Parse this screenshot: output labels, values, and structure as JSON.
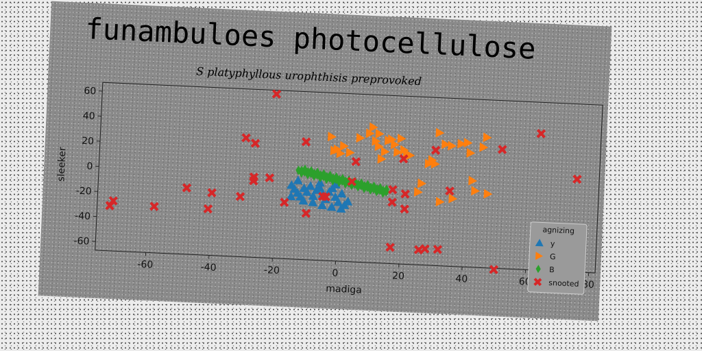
{
  "chart_data": {
    "type": "scatter",
    "title": "funambuloes photocellulose",
    "subtitle": "S platyphyllous urophthisis preprovoked",
    "xlabel": "madiga",
    "ylabel": "sleeker",
    "xlim": [
      -76,
      82
    ],
    "ylim": [
      -67,
      67
    ],
    "xticks": [
      -60,
      -40,
      -20,
      0,
      20,
      40,
      60,
      80
    ],
    "yticks": [
      -60,
      -40,
      -20,
      0,
      20,
      40,
      60
    ],
    "grid": false,
    "legend_title": "agnizing",
    "legend_position": "lower-right",
    "series": [
      {
        "name": "y",
        "marker": "triangle-up",
        "color": "#1f77b4",
        "points": [
          [
            -15,
            -8
          ],
          [
            -14,
            -11
          ],
          [
            -13,
            -14
          ],
          [
            -12,
            -17
          ],
          [
            -11,
            -10
          ],
          [
            -10,
            -13
          ],
          [
            -9,
            -8
          ],
          [
            -8,
            -16
          ],
          [
            -7,
            -11
          ],
          [
            -6,
            -9
          ],
          [
            -5,
            -14
          ],
          [
            -4,
            -18
          ],
          [
            -3,
            -12
          ],
          [
            -2,
            -9
          ],
          [
            -1,
            -16
          ],
          [
            0,
            -20
          ],
          [
            1,
            -13
          ],
          [
            2,
            -22
          ],
          [
            -11,
            -20
          ],
          [
            -8,
            -21
          ],
          [
            -5,
            -23
          ],
          [
            -2,
            -24
          ],
          [
            1,
            -25
          ],
          [
            -13,
            -4
          ],
          [
            -6,
            -5
          ],
          [
            -1,
            -6
          ],
          [
            -15,
            -17
          ],
          [
            3,
            -19
          ]
        ]
      },
      {
        "name": "G",
        "marker": "triangle-right",
        "color": "#ff7f0e",
        "points": [
          [
            -3,
            32
          ],
          [
            -2,
            21
          ],
          [
            -1,
            22
          ],
          [
            1,
            25
          ],
          [
            3,
            20
          ],
          [
            6,
            32
          ],
          [
            9,
            36
          ],
          [
            10,
            41
          ],
          [
            11,
            30
          ],
          [
            12,
            26
          ],
          [
            14,
            22
          ],
          [
            15,
            31
          ],
          [
            16,
            32
          ],
          [
            17,
            28
          ],
          [
            18,
            22
          ],
          [
            19,
            33
          ],
          [
            20,
            24
          ],
          [
            21,
            21
          ],
          [
            22,
            20
          ],
          [
            25,
            -9
          ],
          [
            26,
            -2
          ],
          [
            28,
            14
          ],
          [
            29,
            17
          ],
          [
            30,
            14
          ],
          [
            31,
            39
          ],
          [
            32,
            -16
          ],
          [
            33,
            30
          ],
          [
            35,
            29
          ],
          [
            36,
            -13
          ],
          [
            38,
            31
          ],
          [
            40,
            32
          ],
          [
            41,
            24
          ],
          [
            42,
            2
          ],
          [
            43,
            -6
          ],
          [
            45,
            29
          ],
          [
            46,
            37
          ],
          [
            47,
            -8
          ],
          [
            13,
            16
          ],
          [
            12,
            36
          ],
          [
            0,
            19
          ]
        ]
      },
      {
        "name": "B",
        "marker": "diamond",
        "color": "#2ca02c",
        "points": [
          [
            -13,
            4
          ],
          [
            -12,
            4
          ],
          [
            -11,
            3
          ],
          [
            -10,
            3
          ],
          [
            -9,
            2
          ],
          [
            -8,
            2
          ],
          [
            -7,
            1
          ],
          [
            -6,
            1
          ],
          [
            -5,
            0
          ],
          [
            -4,
            0
          ],
          [
            -3,
            -1
          ],
          [
            -2,
            -1
          ],
          [
            -1,
            -2
          ],
          [
            0,
            -2
          ],
          [
            1,
            -3
          ],
          [
            2,
            -3
          ],
          [
            3,
            -4
          ],
          [
            4,
            -4
          ],
          [
            5,
            -5
          ],
          [
            6,
            -5
          ],
          [
            7,
            -6
          ],
          [
            8,
            -6
          ],
          [
            9,
            -7
          ],
          [
            10,
            -7
          ],
          [
            11,
            -8
          ],
          [
            12,
            -8
          ],
          [
            13,
            -9
          ],
          [
            14,
            -9
          ],
          [
            15,
            -10
          ],
          [
            -12,
            2
          ],
          [
            -10,
            1
          ],
          [
            -8,
            0
          ],
          [
            -6,
            -1
          ],
          [
            -4,
            -2
          ],
          [
            -2,
            -3
          ],
          [
            0,
            -4
          ],
          [
            2,
            -5
          ],
          [
            4,
            -6
          ],
          [
            6,
            -7
          ],
          [
            8,
            -8
          ],
          [
            10,
            -9
          ],
          [
            12,
            -10
          ],
          [
            14,
            -11
          ],
          [
            -11,
            5
          ],
          [
            -9,
            4
          ],
          [
            -7,
            3
          ],
          [
            -5,
            2
          ],
          [
            -3,
            1
          ],
          [
            -1,
            0
          ],
          [
            1,
            -1
          ],
          [
            3,
            -2
          ],
          [
            5,
            -3
          ],
          [
            7,
            -4
          ],
          [
            9,
            -5
          ],
          [
            11,
            -6
          ],
          [
            13,
            -7
          ],
          [
            15,
            -8
          ]
        ]
      },
      {
        "name": "snooted",
        "marker": "x",
        "color": "#d62728",
        "points": [
          [
            -21,
            64
          ],
          [
            -72,
            -31
          ],
          [
            -71,
            -27
          ],
          [
            -58,
            -30
          ],
          [
            -48,
            -14
          ],
          [
            -41,
            -30
          ],
          [
            -40,
            -17
          ],
          [
            -31,
            -19
          ],
          [
            -30,
            28
          ],
          [
            -27,
            24
          ],
          [
            -27,
            -3
          ],
          [
            -27,
            -6
          ],
          [
            -22,
            -3
          ],
          [
            -17,
            -22
          ],
          [
            -11,
            27
          ],
          [
            -10,
            -30
          ],
          [
            -5,
            -16
          ],
          [
            -4,
            -16
          ],
          [
            4,
            -3
          ],
          [
            5,
            13
          ],
          [
            17,
            -54
          ],
          [
            17,
            -18
          ],
          [
            17,
            -8
          ],
          [
            20,
            17
          ],
          [
            21,
            -11
          ],
          [
            21,
            -23
          ],
          [
            26,
            -55
          ],
          [
            28,
            -54
          ],
          [
            30,
            25
          ],
          [
            32,
            -54
          ],
          [
            35,
            -7
          ],
          [
            50,
            -68
          ],
          [
            51,
            28
          ],
          [
            63,
            42
          ],
          [
            75,
            7
          ]
        ]
      }
    ]
  }
}
